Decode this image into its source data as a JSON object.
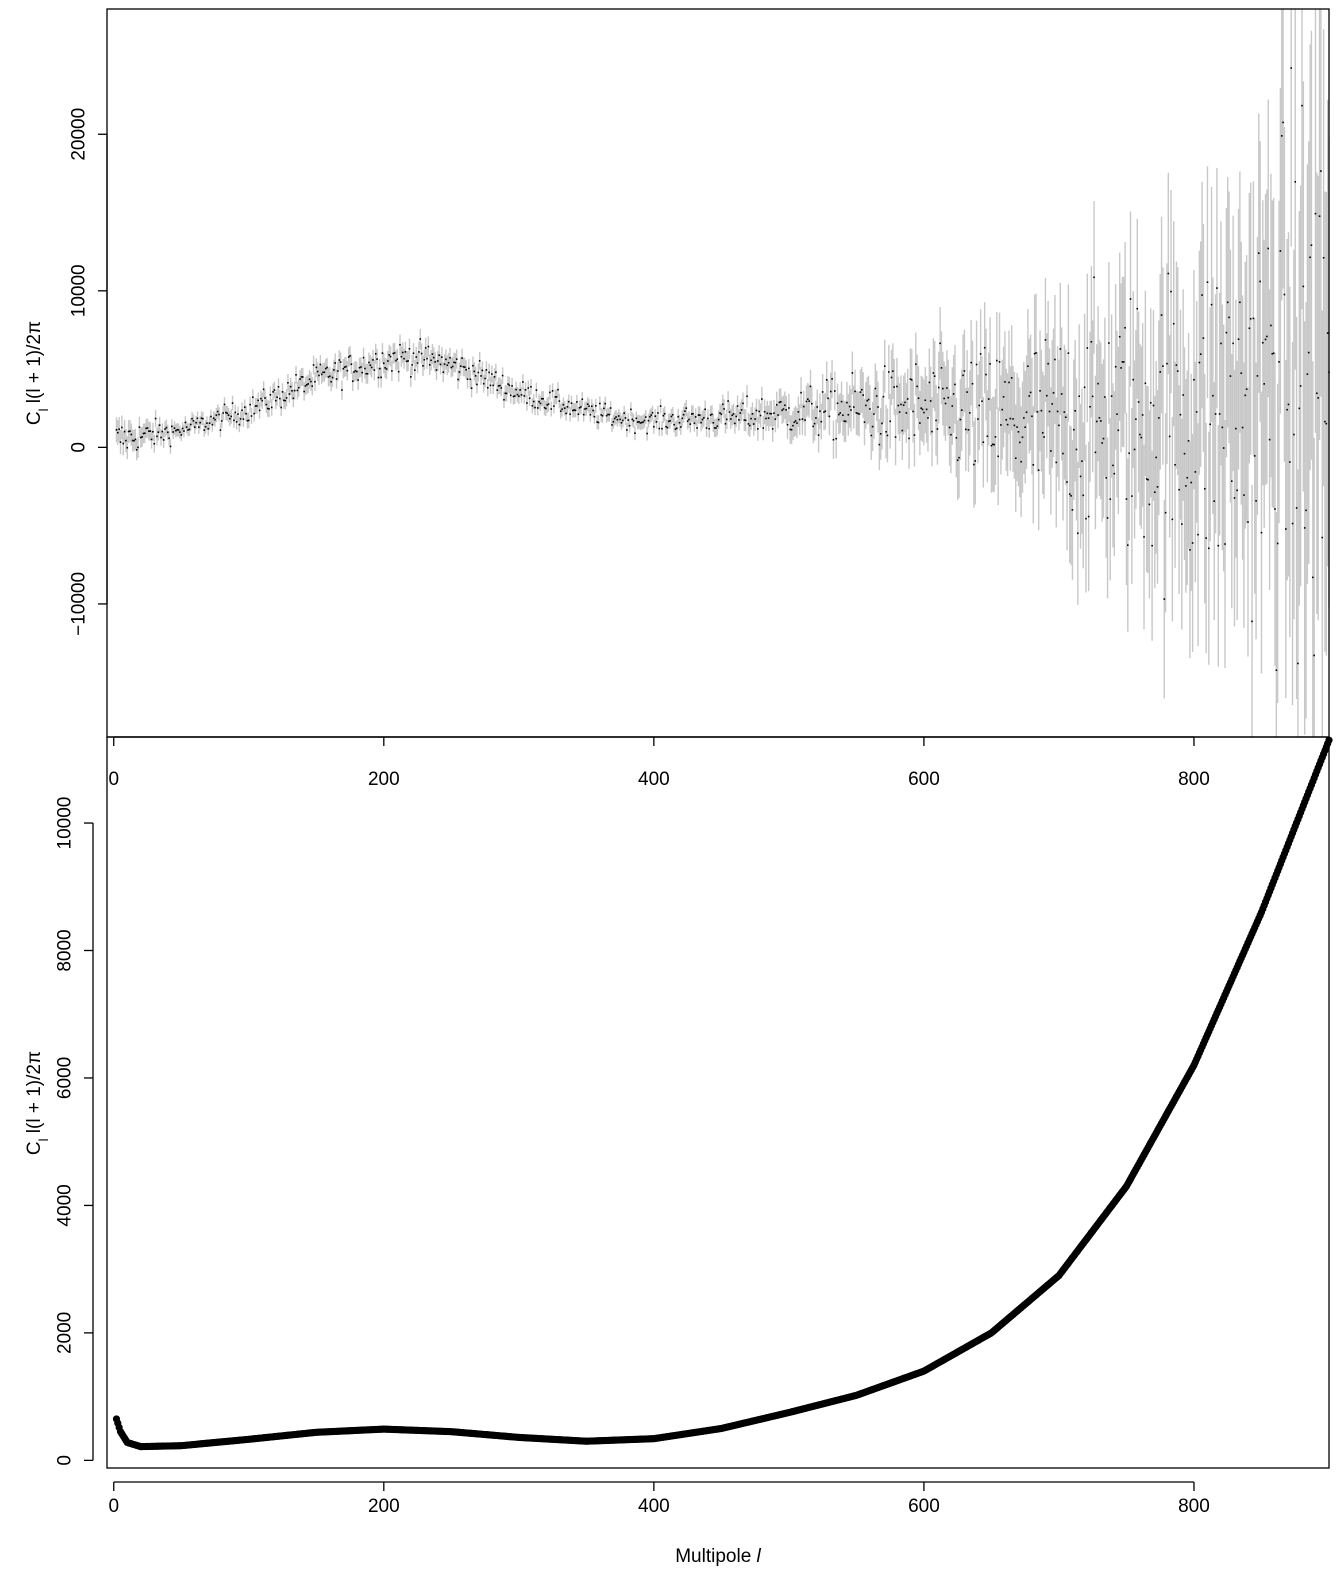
{
  "chart_data": [
    {
      "type": "scatter",
      "title": "",
      "xlabel": "",
      "ylabel": {
        "main": "C",
        "sub": "l",
        "rest": " l(l + 1)/2π"
      },
      "xlim": [
        -5,
        900
      ],
      "ylim": [
        -18500,
        28000
      ],
      "x_ticks": [
        0,
        200,
        400,
        600,
        800
      ],
      "x_tick_labels": [
        "0",
        "200",
        "400",
        "600",
        "800"
      ],
      "y_ticks": [
        -10000,
        0,
        10000,
        20000
      ],
      "y_tick_labels": [
        "−10000",
        "0",
        "10000",
        "20000"
      ],
      "grid": false,
      "legend": "none",
      "x_range": [
        2,
        900
      ],
      "series": [
        {
          "kind": "measurement-with-error-bars",
          "point_color": "#000000",
          "errorbar_color": "#c8c8c8",
          "x": [
            2,
            50,
            100,
            150,
            200,
            220,
            240,
            260,
            300,
            350,
            380,
            400,
            450,
            500,
            550,
            600,
            650,
            700,
            750,
            800,
            850,
            870,
            880,
            890,
            900
          ],
          "y": [
            500,
            1100,
            2400,
            4400,
            5600,
            5800,
            5500,
            5000,
            3500,
            2300,
            1800,
            1700,
            1900,
            2200,
            2500,
            2400,
            1900,
            1200,
            1800,
            1400,
            3000,
            4500,
            3000,
            4000,
            5000
          ],
          "err": [
            800,
            400,
            500,
            600,
            650,
            650,
            650,
            600,
            500,
            450,
            450,
            450,
            600,
            900,
            1400,
            2100,
            3000,
            4200,
            5500,
            7000,
            9000,
            11000,
            13000,
            14000,
            15000
          ]
        }
      ]
    },
    {
      "type": "scatter",
      "title": "",
      "xlabel": {
        "main": "Multipole ",
        "italic": "l"
      },
      "ylabel": {
        "main": "C",
        "sub": "l",
        "rest": " l(l + 1)/2π"
      },
      "xlim": [
        -5,
        900
      ],
      "ylim": [
        -120,
        11350
      ],
      "x_ticks": [
        0,
        200,
        400,
        600,
        800
      ],
      "x_tick_labels": [
        "0",
        "200",
        "400",
        "600",
        "800"
      ],
      "y_ticks": [
        0,
        2000,
        4000,
        6000,
        8000,
        10000
      ],
      "y_tick_labels": [
        "0",
        "2000",
        "4000",
        "6000",
        "8000",
        "10000"
      ],
      "grid": false,
      "legend": "none",
      "series": [
        {
          "kind": "noise-power",
          "point_color": "#000000",
          "x": [
            2,
            5,
            10,
            20,
            50,
            100,
            150,
            200,
            250,
            300,
            350,
            400,
            450,
            500,
            550,
            600,
            650,
            700,
            750,
            800,
            850,
            900
          ],
          "y": [
            650,
            450,
            280,
            215,
            230,
            330,
            440,
            490,
            450,
            360,
            300,
            340,
            500,
            750,
            1020,
            1400,
            2000,
            2900,
            4300,
            6200,
            8600,
            11300
          ]
        }
      ]
    }
  ]
}
